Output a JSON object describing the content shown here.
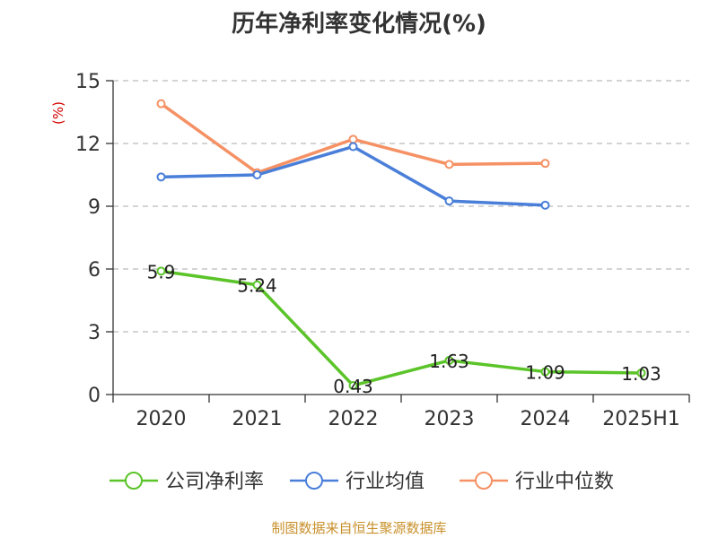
{
  "title": "历年净利率变化情况(%)",
  "source": "制图数据来自恒生聚源数据库",
  "colors": {
    "company": "#5bc429",
    "industry_avg": "#4a7fd9",
    "industry_median": "#f59164",
    "unit": "#d40000",
    "source": "#c8902b",
    "grid": "#bbbbbb",
    "axis": "#333333"
  },
  "chart_data": {
    "type": "line",
    "title": "历年净利率变化情况(%)",
    "ylabel": "(%)",
    "xlabel": "",
    "categories": [
      "2020",
      "2021",
      "2022",
      "2023",
      "2024",
      "2025H1"
    ],
    "ylim": [
      0,
      15
    ],
    "yticks": [
      0,
      3,
      6,
      9,
      12,
      15
    ],
    "grid": true,
    "legend_position": "bottom",
    "series": [
      {
        "name": "公司净利率",
        "key": "company",
        "values": [
          5.9,
          5.24,
          0.43,
          1.63,
          1.09,
          1.03
        ],
        "labels": [
          "5.9",
          "5.24",
          "0.43",
          "1.63",
          "1.09",
          "1.03"
        ]
      },
      {
        "name": "行业均值",
        "key": "industry_avg",
        "values": [
          10.4,
          10.5,
          11.85,
          9.25,
          9.05,
          null
        ]
      },
      {
        "name": "行业中位数",
        "key": "industry_median",
        "values": [
          13.9,
          10.6,
          12.2,
          11.0,
          11.05,
          null
        ]
      }
    ]
  }
}
